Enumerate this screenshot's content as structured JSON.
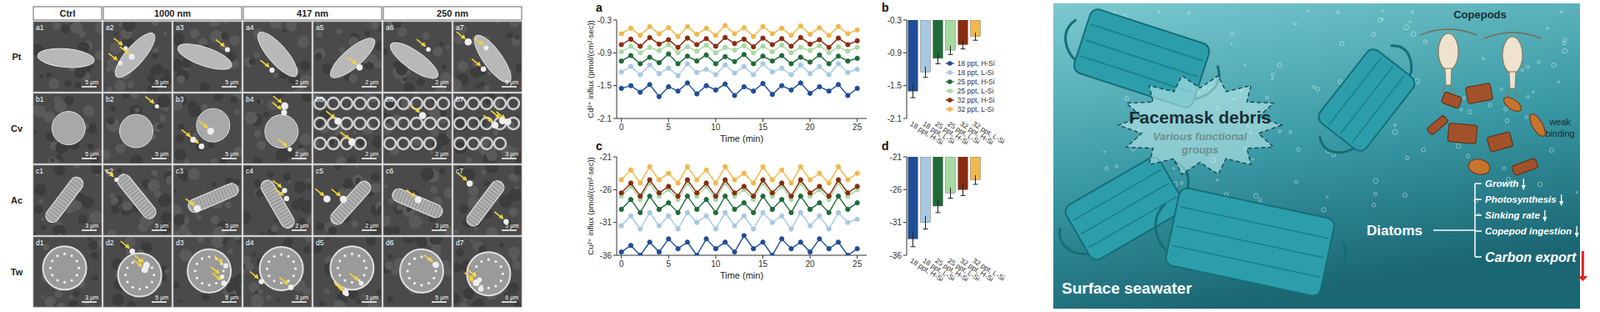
{
  "micrographs": {
    "columns": [
      "Ctrl",
      "1000 nm",
      "417 nm",
      "250 nm"
    ],
    "rows": [
      {
        "label": "Pt",
        "panels": [
          {
            "id": "a1",
            "scale": "5 μm"
          },
          {
            "id": "a2",
            "scale": "5 μm"
          },
          {
            "id": "a3",
            "scale": "5 μm"
          },
          {
            "id": "a4",
            "scale": "2 μm"
          },
          {
            "id": "a5",
            "scale": "2 μm"
          },
          {
            "id": "a6",
            "scale": "2 μm"
          },
          {
            "id": "a7",
            "scale": "5 μm"
          }
        ]
      },
      {
        "label": "Cv",
        "panels": [
          {
            "id": "b1",
            "scale": "5 μm"
          },
          {
            "id": "b2",
            "scale": "5 μm"
          },
          {
            "id": "b3",
            "scale": "5 μm"
          },
          {
            "id": "b4",
            "scale": "2 μm"
          },
          {
            "id": "b5",
            "scale": "2 μm"
          },
          {
            "id": "b6",
            "scale": "2 μm"
          },
          {
            "id": "b7",
            "scale": "3 μm"
          }
        ]
      },
      {
        "label": "Ac",
        "panels": [
          {
            "id": "c1",
            "scale": "3 μm"
          },
          {
            "id": "c2",
            "scale": "5 μm"
          },
          {
            "id": "c3",
            "scale": "5 μm"
          },
          {
            "id": "c4",
            "scale": "2 μm"
          },
          {
            "id": "c5",
            "scale": "2 μm"
          },
          {
            "id": "c6",
            "scale": "3 μm"
          },
          {
            "id": "c7",
            "scale": "5 μm"
          }
        ]
      },
      {
        "label": "Tw",
        "panels": [
          {
            "id": "d1",
            "scale": "3 μm"
          },
          {
            "id": "d2",
            "scale": "5 μm"
          },
          {
            "id": "d3",
            "scale": "5 μm"
          },
          {
            "id": "d4",
            "scale": "3 μm"
          },
          {
            "id": "d5",
            "scale": "3 μm"
          },
          {
            "id": "d6",
            "scale": "5 μm"
          },
          {
            "id": "d7",
            "scale": "6 μm"
          }
        ]
      }
    ]
  },
  "chart_data": [
    {
      "panel": "a",
      "type": "line",
      "x_label": "Time (min)",
      "y_label": "Cd²⁺ influx (pmol/(cm²·sec))",
      "x": [
        0,
        1,
        2,
        3,
        4,
        5,
        6,
        7,
        8,
        9,
        10,
        11,
        12,
        13,
        14,
        15,
        16,
        17,
        18,
        19,
        20,
        21,
        22,
        23,
        24,
        25
      ],
      "xlim": [
        -0.5,
        26
      ],
      "xticks": [
        0,
        5,
        10,
        15,
        20,
        25
      ],
      "ylim": [
        -2.1,
        -0.3
      ],
      "yticks": [
        -0.3,
        -0.9,
        -1.5,
        -2.1
      ],
      "marker": "circle",
      "legend": "right",
      "series": [
        {
          "name": "18 ppt, H-Si",
          "color": "#1f4e96",
          "values": [
            -1.55,
            -1.5,
            -1.62,
            -1.48,
            -1.7,
            -1.52,
            -1.6,
            -1.45,
            -1.65,
            -1.5,
            -1.58,
            -1.47,
            -1.68,
            -1.52,
            -1.6,
            -1.46,
            -1.66,
            -1.5,
            -1.58,
            -1.45,
            -1.64,
            -1.52,
            -1.6,
            -1.48,
            -1.68,
            -1.55
          ]
        },
        {
          "name": "18 ppt, L-Si",
          "color": "#a6c8e2",
          "values": [
            -1.25,
            -1.15,
            -1.3,
            -1.12,
            -1.28,
            -1.18,
            -1.32,
            -1.1,
            -1.26,
            -1.2,
            -1.3,
            -1.12,
            -1.27,
            -1.15,
            -1.3,
            -1.1,
            -1.25,
            -1.18,
            -1.3,
            -1.12,
            -1.28,
            -1.15,
            -1.3,
            -1.1,
            -1.26,
            -1.2
          ]
        },
        {
          "name": "25 ppt, H-Si",
          "color": "#1e6b38",
          "values": [
            -1.05,
            -0.95,
            -1.1,
            -0.98,
            -1.08,
            -0.92,
            -1.1,
            -0.96,
            -1.05,
            -0.94,
            -1.1,
            -0.97,
            -1.06,
            -0.93,
            -1.1,
            -0.96,
            -1.05,
            -0.95,
            -1.1,
            -0.98,
            -1.07,
            -0.94,
            -1.1,
            -0.96,
            -1.05,
            -1.0
          ]
        },
        {
          "name": "25 ppt, L-Si",
          "color": "#a9d9a3",
          "values": [
            -0.88,
            -0.78,
            -0.9,
            -0.8,
            -0.86,
            -0.75,
            -0.9,
            -0.79,
            -0.87,
            -0.76,
            -0.9,
            -0.8,
            -0.85,
            -0.77,
            -0.9,
            -0.78,
            -0.88,
            -0.76,
            -0.9,
            -0.8,
            -0.86,
            -0.77,
            -0.9,
            -0.79,
            -0.87,
            -0.8
          ]
        },
        {
          "name": "32 ppt, H-Si",
          "color": "#8a2c0e",
          "values": [
            -0.75,
            -0.65,
            -0.78,
            -0.62,
            -0.74,
            -0.66,
            -0.8,
            -0.63,
            -0.75,
            -0.64,
            -0.78,
            -0.62,
            -0.73,
            -0.65,
            -0.79,
            -0.63,
            -0.75,
            -0.64,
            -0.78,
            -0.62,
            -0.74,
            -0.66,
            -0.8,
            -0.63,
            -0.75,
            -0.68
          ]
        },
        {
          "name": "32 ppt, L-Si",
          "color": "#f2b84b",
          "values": [
            -0.55,
            -0.45,
            -0.58,
            -0.42,
            -0.55,
            -0.44,
            -0.6,
            -0.42,
            -0.56,
            -0.45,
            -0.58,
            -0.4,
            -0.55,
            -0.44,
            -0.6,
            -0.42,
            -0.55,
            -0.45,
            -0.58,
            -0.41,
            -0.56,
            -0.44,
            -0.58,
            -0.42,
            -0.55,
            -0.48
          ]
        }
      ]
    },
    {
      "panel": "b",
      "type": "bar",
      "categories": [
        "18 ppt, H-Si",
        "18 ppt, L-Si",
        "25 ppt, H-Si",
        "25 ppt, L-Si",
        "32 ppt, H-Si",
        "32 ppt, L-Si"
      ],
      "values": [
        -1.6,
        -1.25,
        -1.0,
        -0.85,
        -0.75,
        -0.6
      ],
      "errors": [
        0.12,
        0.1,
        0.1,
        0.08,
        0.08,
        0.07
      ],
      "colors": [
        "#1f4e96",
        "#a6c8e2",
        "#1e6b38",
        "#a9d9a3",
        "#8a2c0e",
        "#f2b84b"
      ],
      "ylim": [
        -2.1,
        -0.3
      ],
      "yticks": [
        -0.3,
        -0.9,
        -1.5,
        -2.1
      ]
    },
    {
      "panel": "c",
      "type": "line",
      "x_label": "Time (min)",
      "y_label": "Cu²⁺ influx (pmol/(cm²·sec))",
      "x": [
        0,
        1,
        2,
        3,
        4,
        5,
        6,
        7,
        8,
        9,
        10,
        11,
        12,
        13,
        14,
        15,
        16,
        17,
        18,
        19,
        20,
        21,
        22,
        23,
        24,
        25
      ],
      "xlim": [
        -0.5,
        26
      ],
      "xticks": [
        0,
        5,
        10,
        15,
        20,
        25
      ],
      "ylim": [
        -36,
        -21
      ],
      "yticks": [
        -21,
        -26,
        -31,
        -36
      ],
      "marker": "circle",
      "series": [
        {
          "color": "#1f4e96",
          "values": [
            -35.5,
            -34.5,
            -36,
            -34,
            -35.5,
            -33.5,
            -35,
            -34,
            -36,
            -33.5,
            -35,
            -34,
            -35.5,
            -33,
            -35,
            -34,
            -36,
            -33.5,
            -35,
            -34,
            -35.5,
            -33.5,
            -35,
            -34,
            -36,
            -35
          ]
        },
        {
          "color": "#a6c8e2",
          "values": [
            -31.5,
            -30,
            -32,
            -29.5,
            -31.5,
            -30,
            -32,
            -29.5,
            -31,
            -30,
            -32,
            -29.5,
            -31.5,
            -30,
            -32,
            -29.5,
            -31,
            -30,
            -32,
            -29.5,
            -31.5,
            -30,
            -32,
            -29.5,
            -31,
            -30.5
          ]
        },
        {
          "color": "#1e6b38",
          "values": [
            -29,
            -27.5,
            -29.5,
            -27,
            -29,
            -28,
            -29.5,
            -27,
            -29,
            -27.5,
            -29.5,
            -27,
            -29,
            -28,
            -29.5,
            -27,
            -29,
            -27.5,
            -29.5,
            -27,
            -29,
            -28,
            -29.5,
            -27,
            -29,
            -28
          ]
        },
        {
          "color": "#a9d9a3",
          "values": [
            -27,
            -25.5,
            -27.5,
            -25,
            -27,
            -26,
            -27.5,
            -25,
            -27,
            -25.5,
            -27.5,
            -25,
            -27,
            -26,
            -27.5,
            -25,
            -27,
            -25.5,
            -27.5,
            -25,
            -27,
            -26,
            -27.5,
            -25,
            -27,
            -26
          ]
        },
        {
          "color": "#8a2c0e",
          "values": [
            -26.5,
            -25,
            -27,
            -24.5,
            -26.5,
            -25.5,
            -27,
            -24.5,
            -26.5,
            -25,
            -27,
            -24.5,
            -26.5,
            -25.5,
            -27,
            -24.5,
            -26.5,
            -25,
            -27,
            -24.5,
            -26.5,
            -25.5,
            -27,
            -24.5,
            -26.5,
            -25.5
          ]
        },
        {
          "color": "#f2b84b",
          "values": [
            -24.5,
            -23,
            -25,
            -22.5,
            -24.5,
            -23.5,
            -25,
            -22.5,
            -24.5,
            -23,
            -25,
            -22.5,
            -24.5,
            -23.5,
            -25,
            -22.5,
            -24.5,
            -23,
            -25,
            -22.5,
            -24.5,
            -23.5,
            -25,
            -22.5,
            -24.5,
            -23.5
          ]
        }
      ]
    },
    {
      "panel": "d",
      "type": "bar",
      "categories": [
        "18 ppt, H-Si",
        "18 ppt, L-Si",
        "25 ppt, H-Si",
        "25 ppt, L-Si",
        "32 ppt, H-Si",
        "32 ppt, L-Si"
      ],
      "values": [
        -33.5,
        -31,
        -28.5,
        -26.5,
        -26,
        -24.5
      ],
      "errors": [
        1.2,
        1.0,
        1.0,
        0.8,
        0.9,
        0.7
      ],
      "colors": [
        "#1f4e96",
        "#a6c8e2",
        "#1e6b38",
        "#a9d9a3",
        "#8a2c0e",
        "#f2b84b"
      ],
      "ylim": [
        -36,
        -21
      ],
      "yticks": [
        -21,
        -26,
        -31,
        -36
      ]
    }
  ],
  "graphic": {
    "title": "Facemask debris",
    "subtitle_lines": [
      "Various functional",
      "groups"
    ],
    "copepods": "Copepods",
    "binding_lines": [
      "weak",
      "binding"
    ],
    "diatoms": "Diatoms",
    "effects": [
      "Growth",
      "Photosynthesis",
      "Sinking rate",
      "Copepod ingestion"
    ],
    "outcome": "Carbon export",
    "setting": "Surface seawater"
  }
}
